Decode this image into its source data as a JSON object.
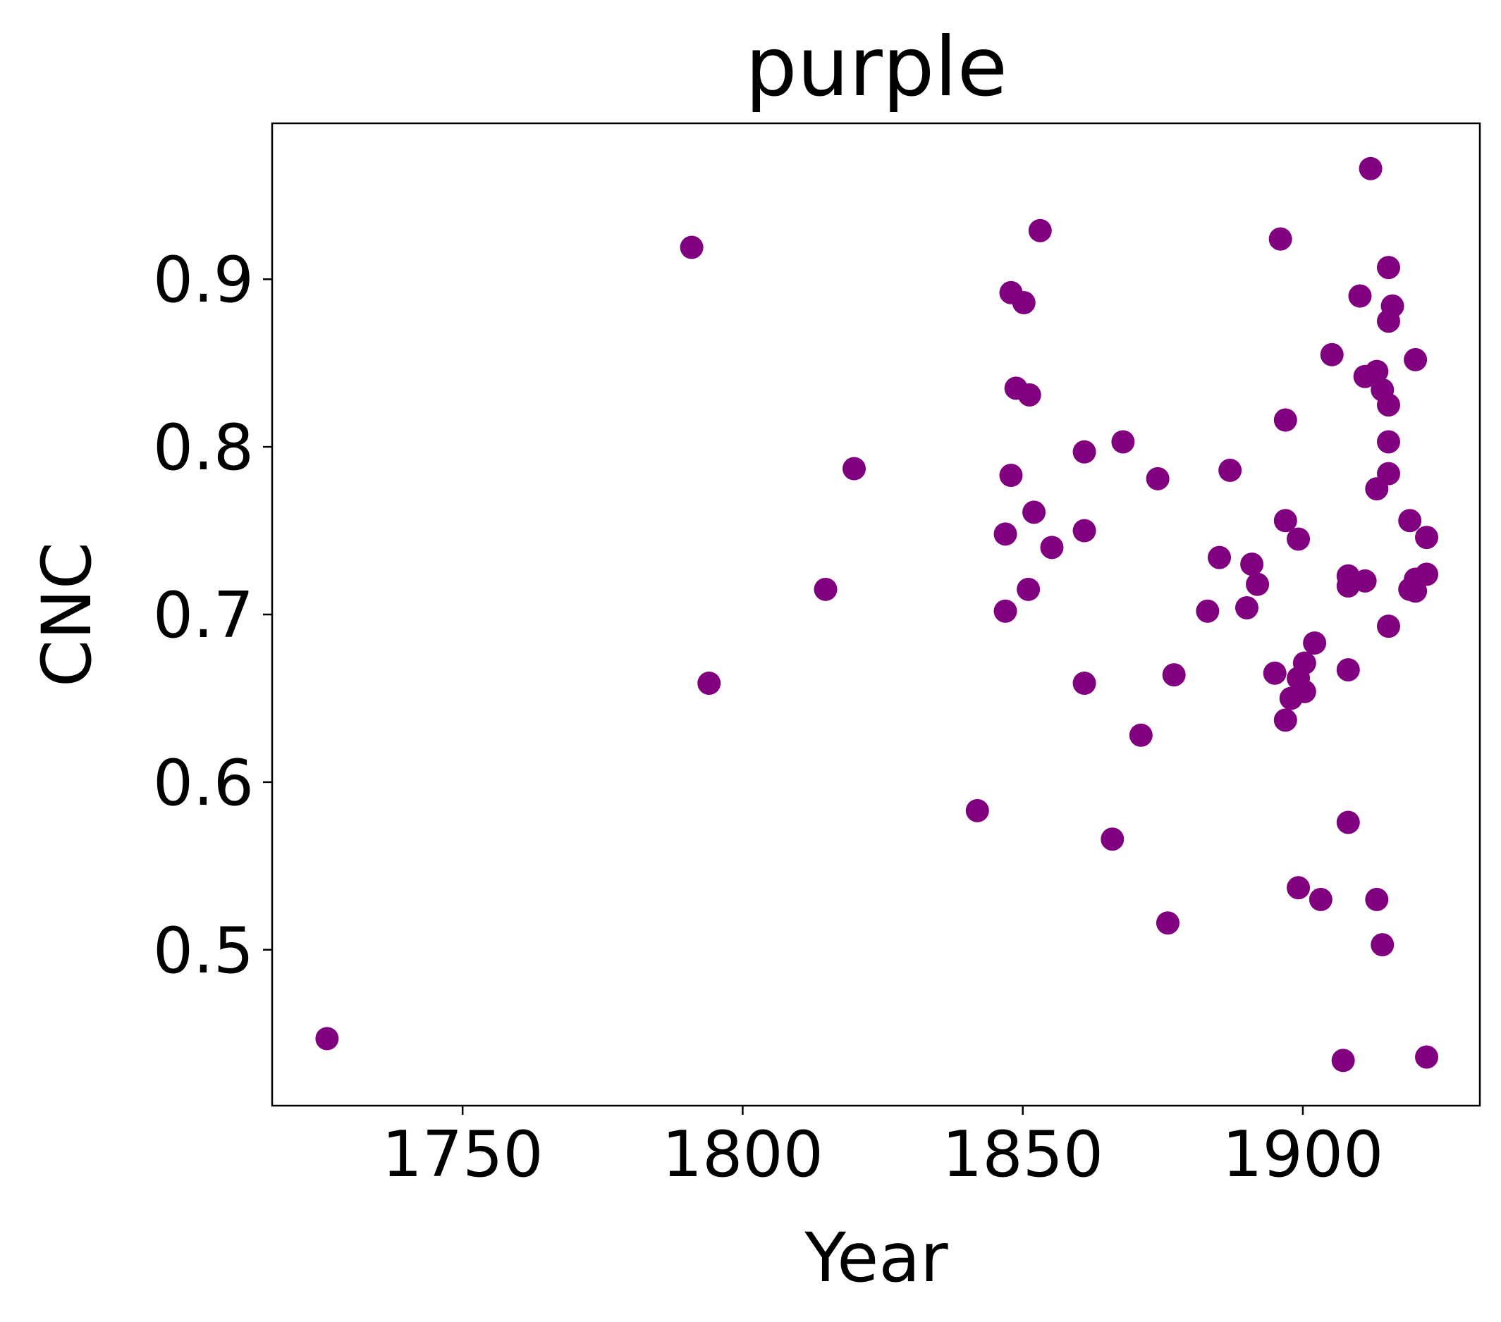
{
  "chart_data": {
    "type": "scatter",
    "title": "purple",
    "x_label": "Year",
    "y_label": "CNC",
    "color": "#800080",
    "x": [
      1725.8,
      1790.9,
      1794.0,
      1814.8,
      1819.9,
      1841.9,
      1847.9,
      1850.2,
      1848.8,
      1851.2,
      1847.9,
      1846.9,
      1852.0,
      1846.9,
      1851.0,
      1853.1,
      1855.2,
      1861.0,
      1861.0,
      1861.0,
      1867.9,
      1866.0,
      1871.1,
      1874.1,
      1877.0,
      1875.9,
      1883.0,
      1885.1,
      1887.0,
      1890.0,
      1890.9,
      1891.9,
      1896.0,
      1896.9,
      1896.9,
      1899.2,
      1895.0,
      1896.9,
      1897.9,
      1899.2,
      1900.3,
      1900.3,
      1902.1,
      1899.2,
      1903.2,
      1905.2,
      1908.1,
      1908.1,
      1907.2,
      1908.1,
      1908.1,
      1911.1,
      1910.2,
      1912.1,
      1911.1,
      1913.2,
      1914.2,
      1915.3,
      1915.3,
      1915.3,
      1913.2,
      1915.3,
      1916.0,
      1915.3,
      1915.3,
      1913.2,
      1914.2,
      1920.1,
      1919.1,
      1922.1,
      1920.1,
      1922.1,
      1919.1,
      1920.1,
      1922.1
    ],
    "values": [
      0.447,
      0.919,
      0.659,
      0.715,
      0.787,
      0.583,
      0.892,
      0.886,
      0.835,
      0.831,
      0.783,
      0.748,
      0.761,
      0.702,
      0.715,
      0.929,
      0.74,
      0.797,
      0.75,
      0.659,
      0.803,
      0.566,
      0.628,
      0.781,
      0.664,
      0.516,
      0.702,
      0.734,
      0.786,
      0.704,
      0.73,
      0.718,
      0.924,
      0.816,
      0.756,
      0.745,
      0.665,
      0.637,
      0.65,
      0.662,
      0.671,
      0.654,
      0.683,
      0.537,
      0.53,
      0.855,
      0.667,
      0.576,
      0.434,
      0.723,
      0.717,
      0.72,
      0.89,
      0.966,
      0.842,
      0.845,
      0.834,
      0.825,
      0.803,
      0.784,
      0.775,
      0.907,
      0.884,
      0.875,
      0.693,
      0.53,
      0.503,
      0.852,
      0.756,
      0.746,
      0.721,
      0.724,
      0.715,
      0.714,
      0.436
    ],
    "xlim": [
      1716,
      1931.6
    ],
    "ylim": [
      0.407,
      0.993
    ],
    "xticks": [
      1750,
      1800,
      1850,
      1900
    ],
    "yticks": [
      0.5,
      0.6,
      0.7,
      0.8,
      0.9
    ]
  }
}
